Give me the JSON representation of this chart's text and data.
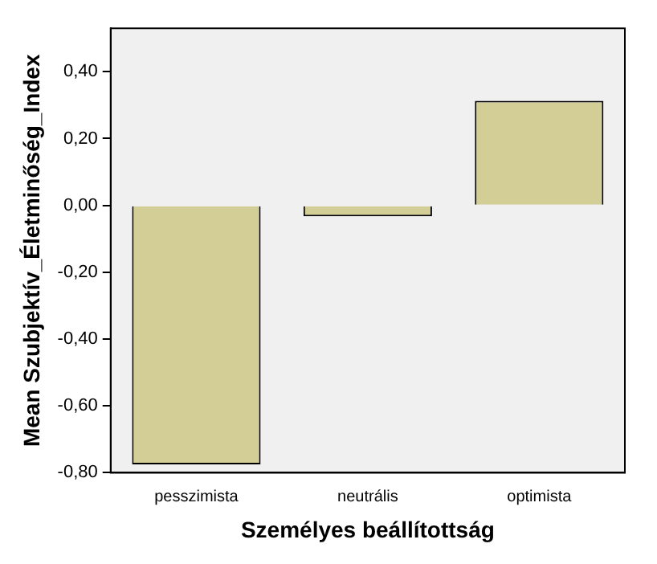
{
  "chart_data": {
    "type": "bar",
    "xlabel": "Személyes beállítottság",
    "ylabel": "Mean Szubjektív_Életminőség_Index",
    "categories": [
      "pesszimista",
      "neutrális",
      "optimista"
    ],
    "values": [
      -0.775,
      -0.033,
      0.313
    ],
    "color": "#d3cd96",
    "ylim": [
      -0.8,
      0.53
    ],
    "yticks": [
      {
        "value": -0.8,
        "label": "-0,80"
      },
      {
        "value": -0.6,
        "label": "-0,60"
      },
      {
        "value": -0.4,
        "label": "-0,40"
      },
      {
        "value": -0.2,
        "label": "-0,20"
      },
      {
        "value": 0,
        "label": "0,00"
      },
      {
        "value": 0.2,
        "label": "0,20"
      },
      {
        "value": 0.4,
        "label": "0,40"
      }
    ],
    "grid": false,
    "legend": false
  }
}
